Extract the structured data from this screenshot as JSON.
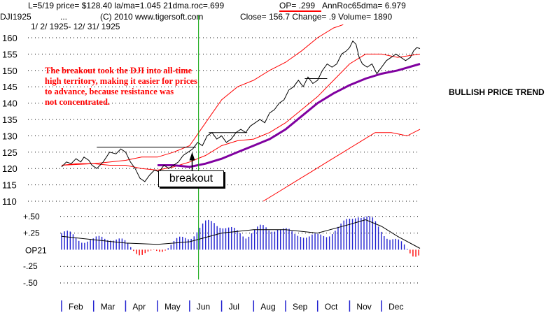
{
  "header": {
    "line1_left": "L=5/19  price= $128.40  la/ma=1.045 21dma.roc=.699",
    "op_label": "OP= .299",
    "line1_right": "AnnRoc65dma= 6.979",
    "line2_symbol": "DJI1925",
    "line2_dots": "...",
    "copyright": "(C) 2010 www.tigersoft.com",
    "close": "Close=  156.7  Change= .9 Volume= 1890",
    "date_range": "1/ 2/ 1925- 12/ 31/ 1925"
  },
  "annotation": "The breakout took the DJI into all-time\nhigh territory, making it easier for prices\nto advance, because resistance was\nnot concentrated.",
  "side_label": "BULLISH PRICE TREND",
  "breakout_label": "breakout",
  "colors": {
    "price": "#000000",
    "band": "#ff0000",
    "ma": "#8000a0",
    "op": "#2020d0",
    "marker": "#00a000",
    "grid": "#000000"
  },
  "chart_data": {
    "type": "line",
    "title": "DJI1925",
    "price_axis": {
      "ylim": [
        110,
        163
      ],
      "ticks": [
        160,
        155,
        150,
        145,
        140,
        135,
        130,
        125,
        120,
        115,
        110
      ]
    },
    "op_axis": {
      "ylim": [
        -0.5,
        0.55
      ],
      "ticks": [
        0.5,
        0.25,
        -0.25,
        -0.5
      ],
      "tick_labels": [
        "+.50",
        "+.25",
        "-.25",
        "-.50"
      ],
      "zero_label": "OP21"
    },
    "months": [
      "Feb",
      "Mar",
      "Apr",
      "May",
      "Jun",
      "Jul",
      "Aug",
      "Sep",
      "Oct",
      "Nov",
      "Dec"
    ],
    "marker_month_index": 4,
    "price": {
      "x": [
        0,
        0.15,
        0.3,
        0.45,
        0.6,
        0.7,
        0.85,
        0.95,
        1.1,
        1.3,
        1.5,
        1.7,
        1.85,
        2.0,
        2.15,
        2.3,
        2.45,
        2.6,
        2.75,
        2.9,
        3.05,
        3.2,
        3.35,
        3.5,
        3.65,
        3.8,
        3.95,
        4.1,
        4.25,
        4.4,
        4.55,
        4.7,
        4.85,
        5.0,
        5.15,
        5.3,
        5.45,
        5.6,
        5.75,
        5.9,
        6.05,
        6.2,
        6.35,
        6.5,
        6.65,
        6.8,
        6.95,
        7.1,
        7.25,
        7.4,
        7.55,
        7.7,
        7.85,
        8.0,
        8.15,
        8.3,
        8.45,
        8.6,
        8.75,
        8.9,
        9.0,
        9.1,
        9.2,
        9.3,
        9.4,
        9.55,
        9.7,
        9.85,
        10.0,
        10.15,
        10.3,
        10.45,
        10.6,
        10.75,
        10.9,
        11.0,
        11.1,
        11.2
      ],
      "y": [
        120.5,
        122,
        121.5,
        123,
        122,
        123.5,
        122.5,
        121,
        120,
        122,
        125,
        124.5,
        126,
        125,
        122,
        120,
        117,
        116,
        118,
        119.5,
        119,
        121,
        120,
        121,
        122,
        124,
        125,
        126,
        128,
        127,
        130,
        131,
        129,
        130,
        128,
        129,
        131,
        132,
        131,
        133,
        134,
        135,
        134,
        137,
        138,
        140,
        141,
        144,
        145,
        147,
        145,
        148,
        146,
        147,
        150,
        152,
        151,
        152,
        155,
        156,
        157,
        159,
        158,
        154,
        152,
        151,
        152,
        149,
        151,
        153,
        154,
        155,
        154,
        153,
        154,
        156,
        157,
        156.7
      ]
    },
    "ma_line": {
      "x": [
        3.0,
        3.5,
        4.0,
        4.5,
        5.0,
        5.5,
        6.0,
        6.5,
        7.0,
        7.5,
        8.0,
        8.5,
        9.0,
        9.5,
        10.0,
        10.5,
        11.2
      ],
      "y": [
        121,
        121,
        120.5,
        121.5,
        123,
        125,
        127,
        129,
        132,
        136,
        140,
        143,
        145.5,
        147.5,
        149,
        150,
        152
      ]
    },
    "upper_band": {
      "x": [
        0,
        1.0,
        2.0,
        2.5,
        3.0,
        3.5,
        4.0,
        4.5,
        5.0,
        5.5,
        6.0,
        6.5,
        7.0,
        7.5,
        8.0,
        8.5,
        8.8
      ],
      "y": [
        121,
        121.5,
        122.5,
        123.5,
        123.5,
        125,
        127,
        134,
        141,
        145,
        147,
        150,
        152.5,
        156,
        160,
        163,
        164
      ]
    },
    "lower_band": {
      "x": [
        6.3,
        6.8,
        7.3,
        7.8,
        8.3,
        8.8,
        9.3,
        9.8,
        10.3,
        10.8,
        11.2
      ],
      "y": [
        110,
        113,
        116,
        119,
        122,
        125,
        128,
        131,
        131,
        130,
        132
      ]
    },
    "red_ma_upper": {
      "x": [
        0,
        0.5,
        1.0,
        1.5,
        2.0,
        2.5,
        3.0,
        3.5,
        4.0,
        4.5,
        5.0,
        5.5,
        6.0,
        6.5,
        7.0,
        7.5,
        8.0,
        8.5,
        9.0,
        9.5,
        10.0,
        10.5,
        11.2
      ],
      "y": [
        121,
        121.5,
        121.5,
        121,
        121,
        120,
        119.5,
        120.5,
        122,
        124,
        127,
        128.5,
        129,
        131,
        134,
        138,
        142,
        147,
        152,
        155,
        155,
        154,
        155
      ]
    },
    "resistance_lines": [
      {
        "x": [
          1.1,
          4.2
        ],
        "y": [
          126.5,
          126.5
        ]
      },
      {
        "x": [
          4.6,
          5.8
        ],
        "y": [
          131,
          131
        ]
      },
      {
        "x": [
          7.6,
          8.3
        ],
        "y": [
          147.5,
          147.5
        ]
      }
    ],
    "op21": {
      "x": [
        0,
        0.25,
        0.5,
        0.75,
        1.0,
        1.25,
        1.5,
        1.75,
        2.0,
        2.25,
        2.5,
        2.75,
        3.0,
        3.25,
        3.5,
        3.75,
        4.0,
        4.25,
        4.5,
        4.75,
        5.0,
        5.25,
        5.5,
        5.75,
        6.0,
        6.25,
        6.5,
        6.75,
        7.0,
        7.25,
        7.5,
        7.75,
        8.0,
        8.25,
        8.5,
        8.75,
        9.0,
        9.25,
        9.5,
        9.75,
        10.0,
        10.25,
        10.5,
        10.75,
        11.0,
        11.2
      ],
      "y": [
        0.25,
        0.22,
        0.18,
        0.15,
        0.12,
        0.18,
        0.2,
        0.15,
        0.08,
        0.02,
        -0.05,
        -0.08,
        -0.03,
        0.05,
        0.1,
        0.15,
        0.2,
        0.3,
        0.38,
        0.42,
        0.38,
        0.3,
        0.25,
        0.22,
        0.3,
        0.32,
        0.3,
        0.35,
        0.28,
        0.22,
        0.25,
        0.2,
        0.18,
        0.22,
        0.3,
        0.35,
        0.45,
        0.55,
        0.48,
        0.42,
        0.3,
        0.18,
        0.1,
        0.05,
        -0.05,
        -0.08
      ]
    },
    "op21_smooth": {
      "x": [
        0,
        1,
        2,
        3,
        4,
        5,
        6,
        7,
        8,
        9,
        9.5,
        10,
        10.5,
        11.2
      ],
      "y": [
        0.2,
        0.15,
        0.1,
        0.08,
        0.12,
        0.25,
        0.3,
        0.3,
        0.25,
        0.38,
        0.45,
        0.35,
        0.2,
        0.02
      ]
    }
  }
}
